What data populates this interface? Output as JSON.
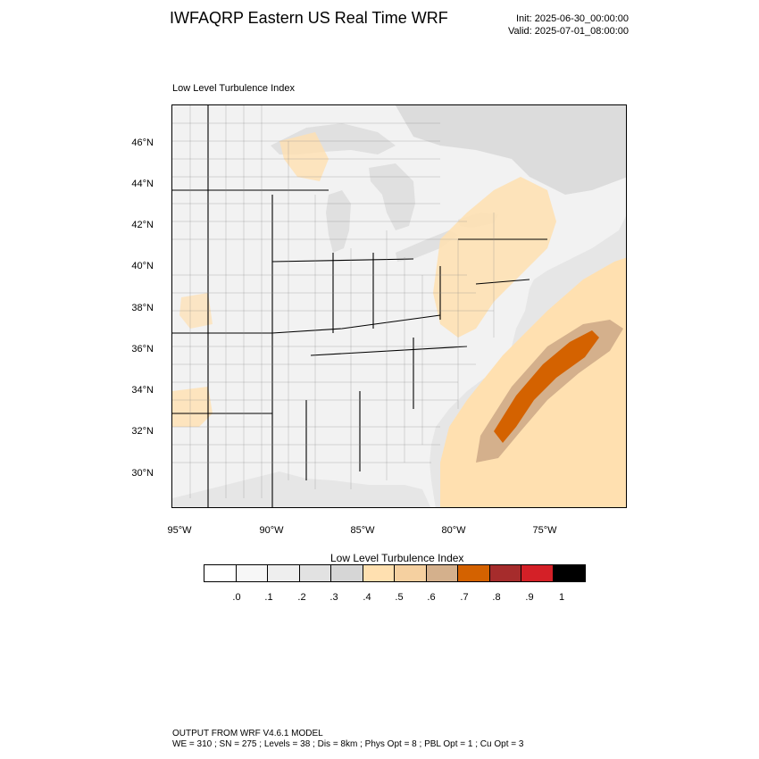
{
  "header": {
    "title": "IWFAQRP Eastern US Real Time WRF",
    "init": "Init: 2025-06-30_00:00:00",
    "valid": "Valid: 2025-07-01_08:00:00"
  },
  "map": {
    "subtitle": "Low Level Turbulence Index",
    "lat_labels": [
      "46°N",
      "44°N",
      "42°N",
      "40°N",
      "38°N",
      "36°N",
      "34°N",
      "32°N",
      "30°N"
    ],
    "lon_labels": [
      "95°W",
      "90°W",
      "85°W",
      "80°W",
      "75°W"
    ],
    "colors": {
      "land": "#ffffff",
      "water": "#e6e6e6",
      "light_orange": "#ffe0b0",
      "tan": "#d4b08c",
      "dark_orange": "#d46200",
      "gray": "#d6d6d6"
    }
  },
  "colorbar": {
    "title": "Low Level Turbulence Index",
    "colors": [
      "#ffffff",
      "#f7f7f7",
      "#eeeeee",
      "#e2e2e2",
      "#d6d6d6",
      "#ffe0b0",
      "#f5d0a0",
      "#d4b08c",
      "#d46200",
      "#a62c2c",
      "#d42027",
      "#000000"
    ],
    "ticks": [
      ".0",
      ".1",
      ".2",
      ".3",
      ".4",
      ".5",
      ".6",
      ".7",
      ".8",
      ".9",
      "1"
    ]
  },
  "footer": {
    "line1": "OUTPUT FROM WRF V4.6.1 MODEL",
    "line2": "WE = 310 ; SN = 275 ; Levels = 38 ; Dis = 8km ; Phys Opt = 8 ; PBL Opt = 1 ; Cu Opt = 3"
  }
}
